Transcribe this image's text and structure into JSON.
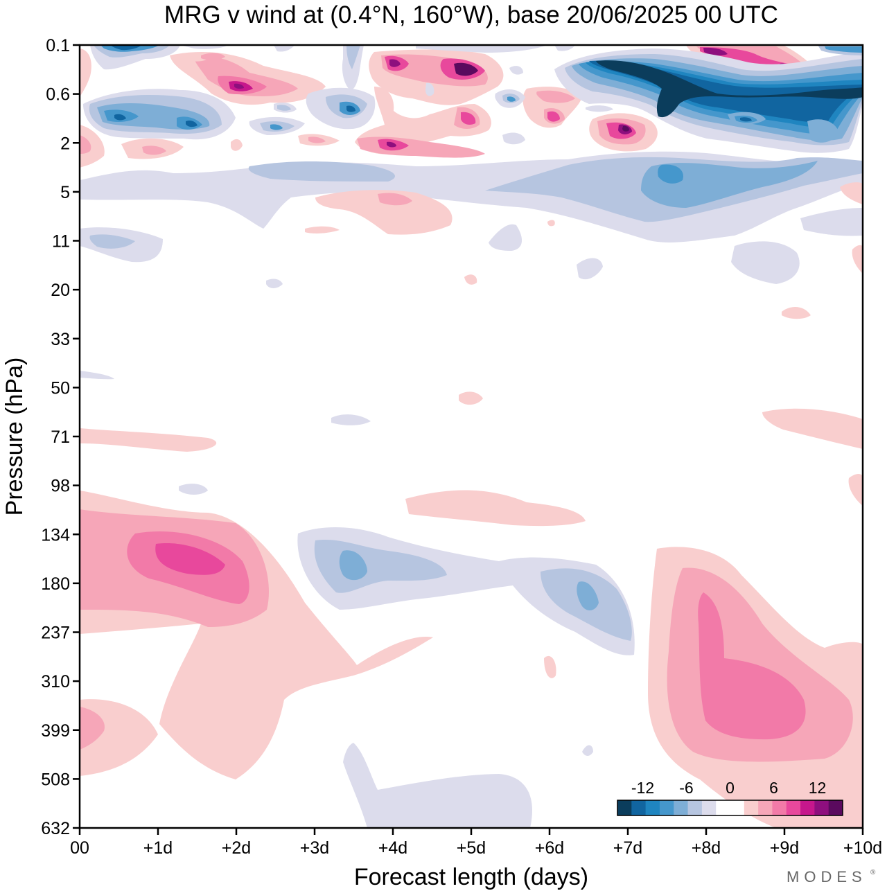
{
  "chart_data": {
    "type": "heatmap",
    "title": "MRG v wind at (0.4°N, 160°W),  base 20/06/2025  00 UTC",
    "xlabel": "Forecast length (days)",
    "ylabel": "Pressure (hPa)",
    "x_ticks": [
      "00",
      "+1d",
      "+2d",
      "+3d",
      "+4d",
      "+5d",
      "+6d",
      "+7d",
      "+8d",
      "+9d",
      "+10d"
    ],
    "x_range_days": [
      0,
      10
    ],
    "y_ticks": [
      "0.1",
      "0.6",
      "2",
      "5",
      "11",
      "20",
      "33",
      "50",
      "71",
      "98",
      "134",
      "180",
      "237",
      "310",
      "399",
      "508",
      "632"
    ],
    "y_scale": "log-pressure, inverted (top = 0.1 hPa)",
    "grid": false,
    "legend_position": "bottom-right",
    "colorbar": {
      "labels": [
        "-12",
        "-6",
        "0",
        "6",
        "12"
      ],
      "colors": [
        "#0b3d5c",
        "#1165a0",
        "#1f85c0",
        "#4597cc",
        "#7eaed6",
        "#b6c5e0",
        "#dcdcec",
        "#ffffff",
        "#ffffff",
        "#f9cece",
        "#f6a6b8",
        "#f27aa8",
        "#e8489c",
        "#c6178c",
        "#8e0f7e",
        "#5a0a5e"
      ]
    },
    "features": [
      {
        "sign": "positive",
        "level": 9,
        "x_days": [
          1.0,
          2.0
        ],
        "p_hPa": [
          134,
          180
        ]
      },
      {
        "sign": "positive",
        "level": 9,
        "x_days": [
          7.9,
          9.3
        ],
        "p_hPa": [
          180,
          430
        ]
      },
      {
        "sign": "negative",
        "level": -3,
        "x_days": [
          3.0,
          4.5
        ],
        "p_hPa": [
          134,
          200
        ]
      },
      {
        "sign": "negative",
        "level": -3,
        "x_days": [
          5.9,
          7.1
        ],
        "p_hPa": [
          160,
          250
        ]
      },
      {
        "sign": "negative",
        "level": -15,
        "x_days": [
          6.5,
          10.0
        ],
        "p_hPa": [
          0.15,
          1.2
        ]
      },
      {
        "sign": "positive",
        "level": 15,
        "x_days": [
          4.0,
          5.2
        ],
        "p_hPa": [
          0.2,
          0.6
        ]
      },
      {
        "sign": "positive",
        "level": 15,
        "x_days": [
          8.0,
          9.2
        ],
        "p_hPa": [
          0.12,
          0.3
        ]
      }
    ]
  },
  "logo": "MODES"
}
